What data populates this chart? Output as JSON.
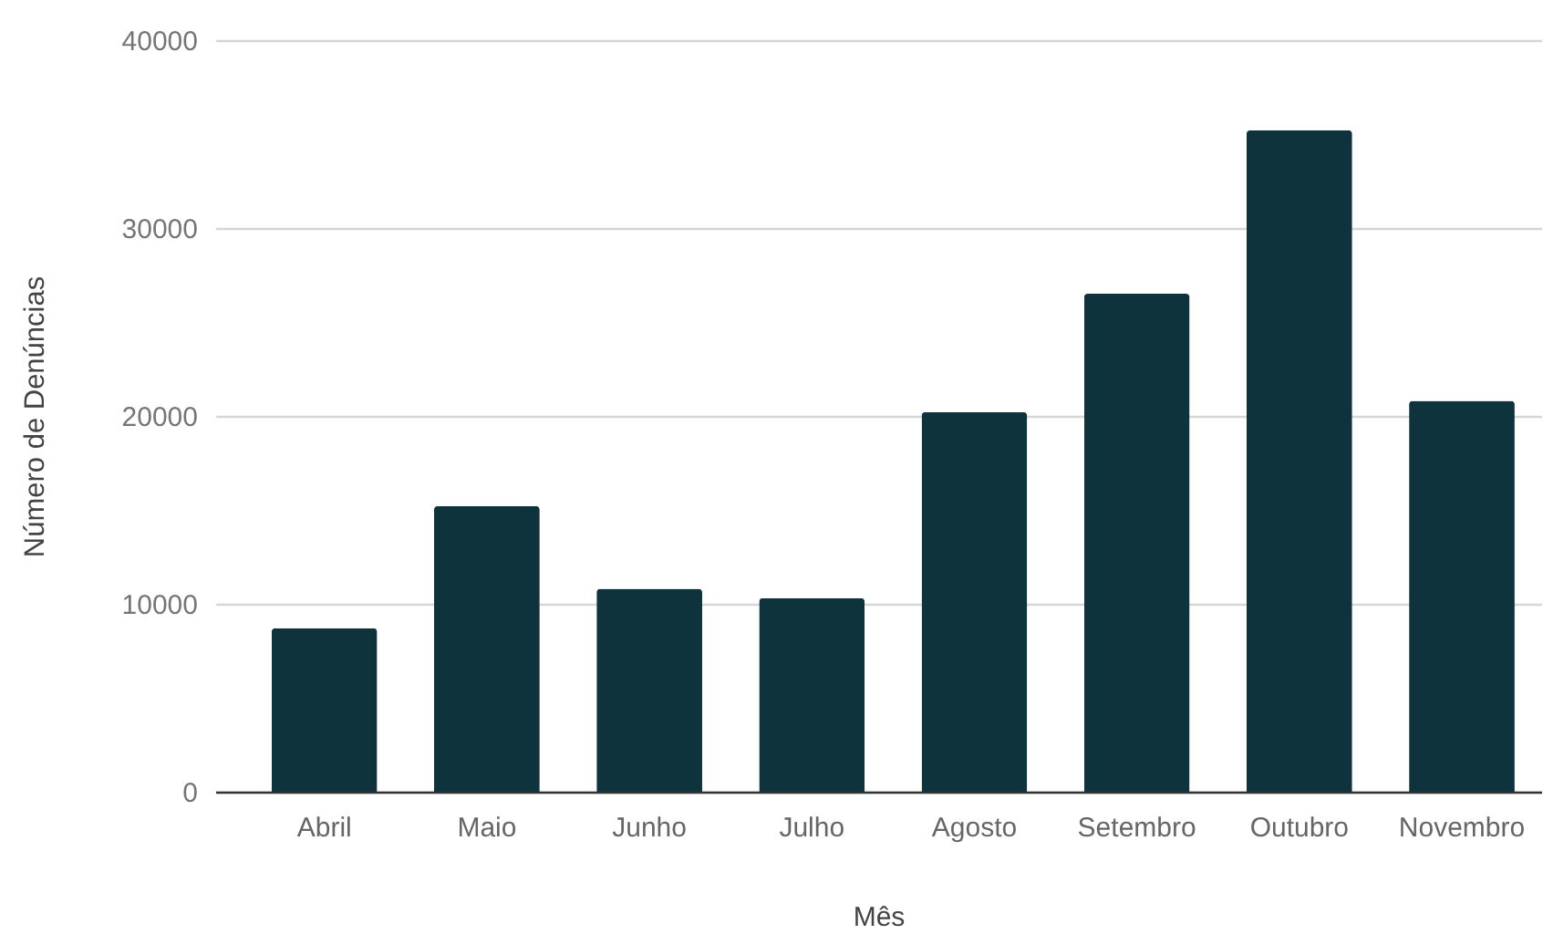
{
  "chart_data": {
    "type": "bar",
    "xlabel": "Mês",
    "ylabel": "Número de Denúncias",
    "categories": [
      "Abril",
      "Maio",
      "Junho",
      "Julho",
      "Agosto",
      "Setembro",
      "Outubro",
      "Novembro"
    ],
    "values": [
      8700,
      15200,
      10800,
      10300,
      20200,
      26500,
      35200,
      20800
    ],
    "color": "#0f333d",
    "ylim": [
      0,
      40000
    ],
    "yticks": [
      0,
      10000,
      20000,
      30000,
      40000
    ],
    "grid": "y"
  }
}
